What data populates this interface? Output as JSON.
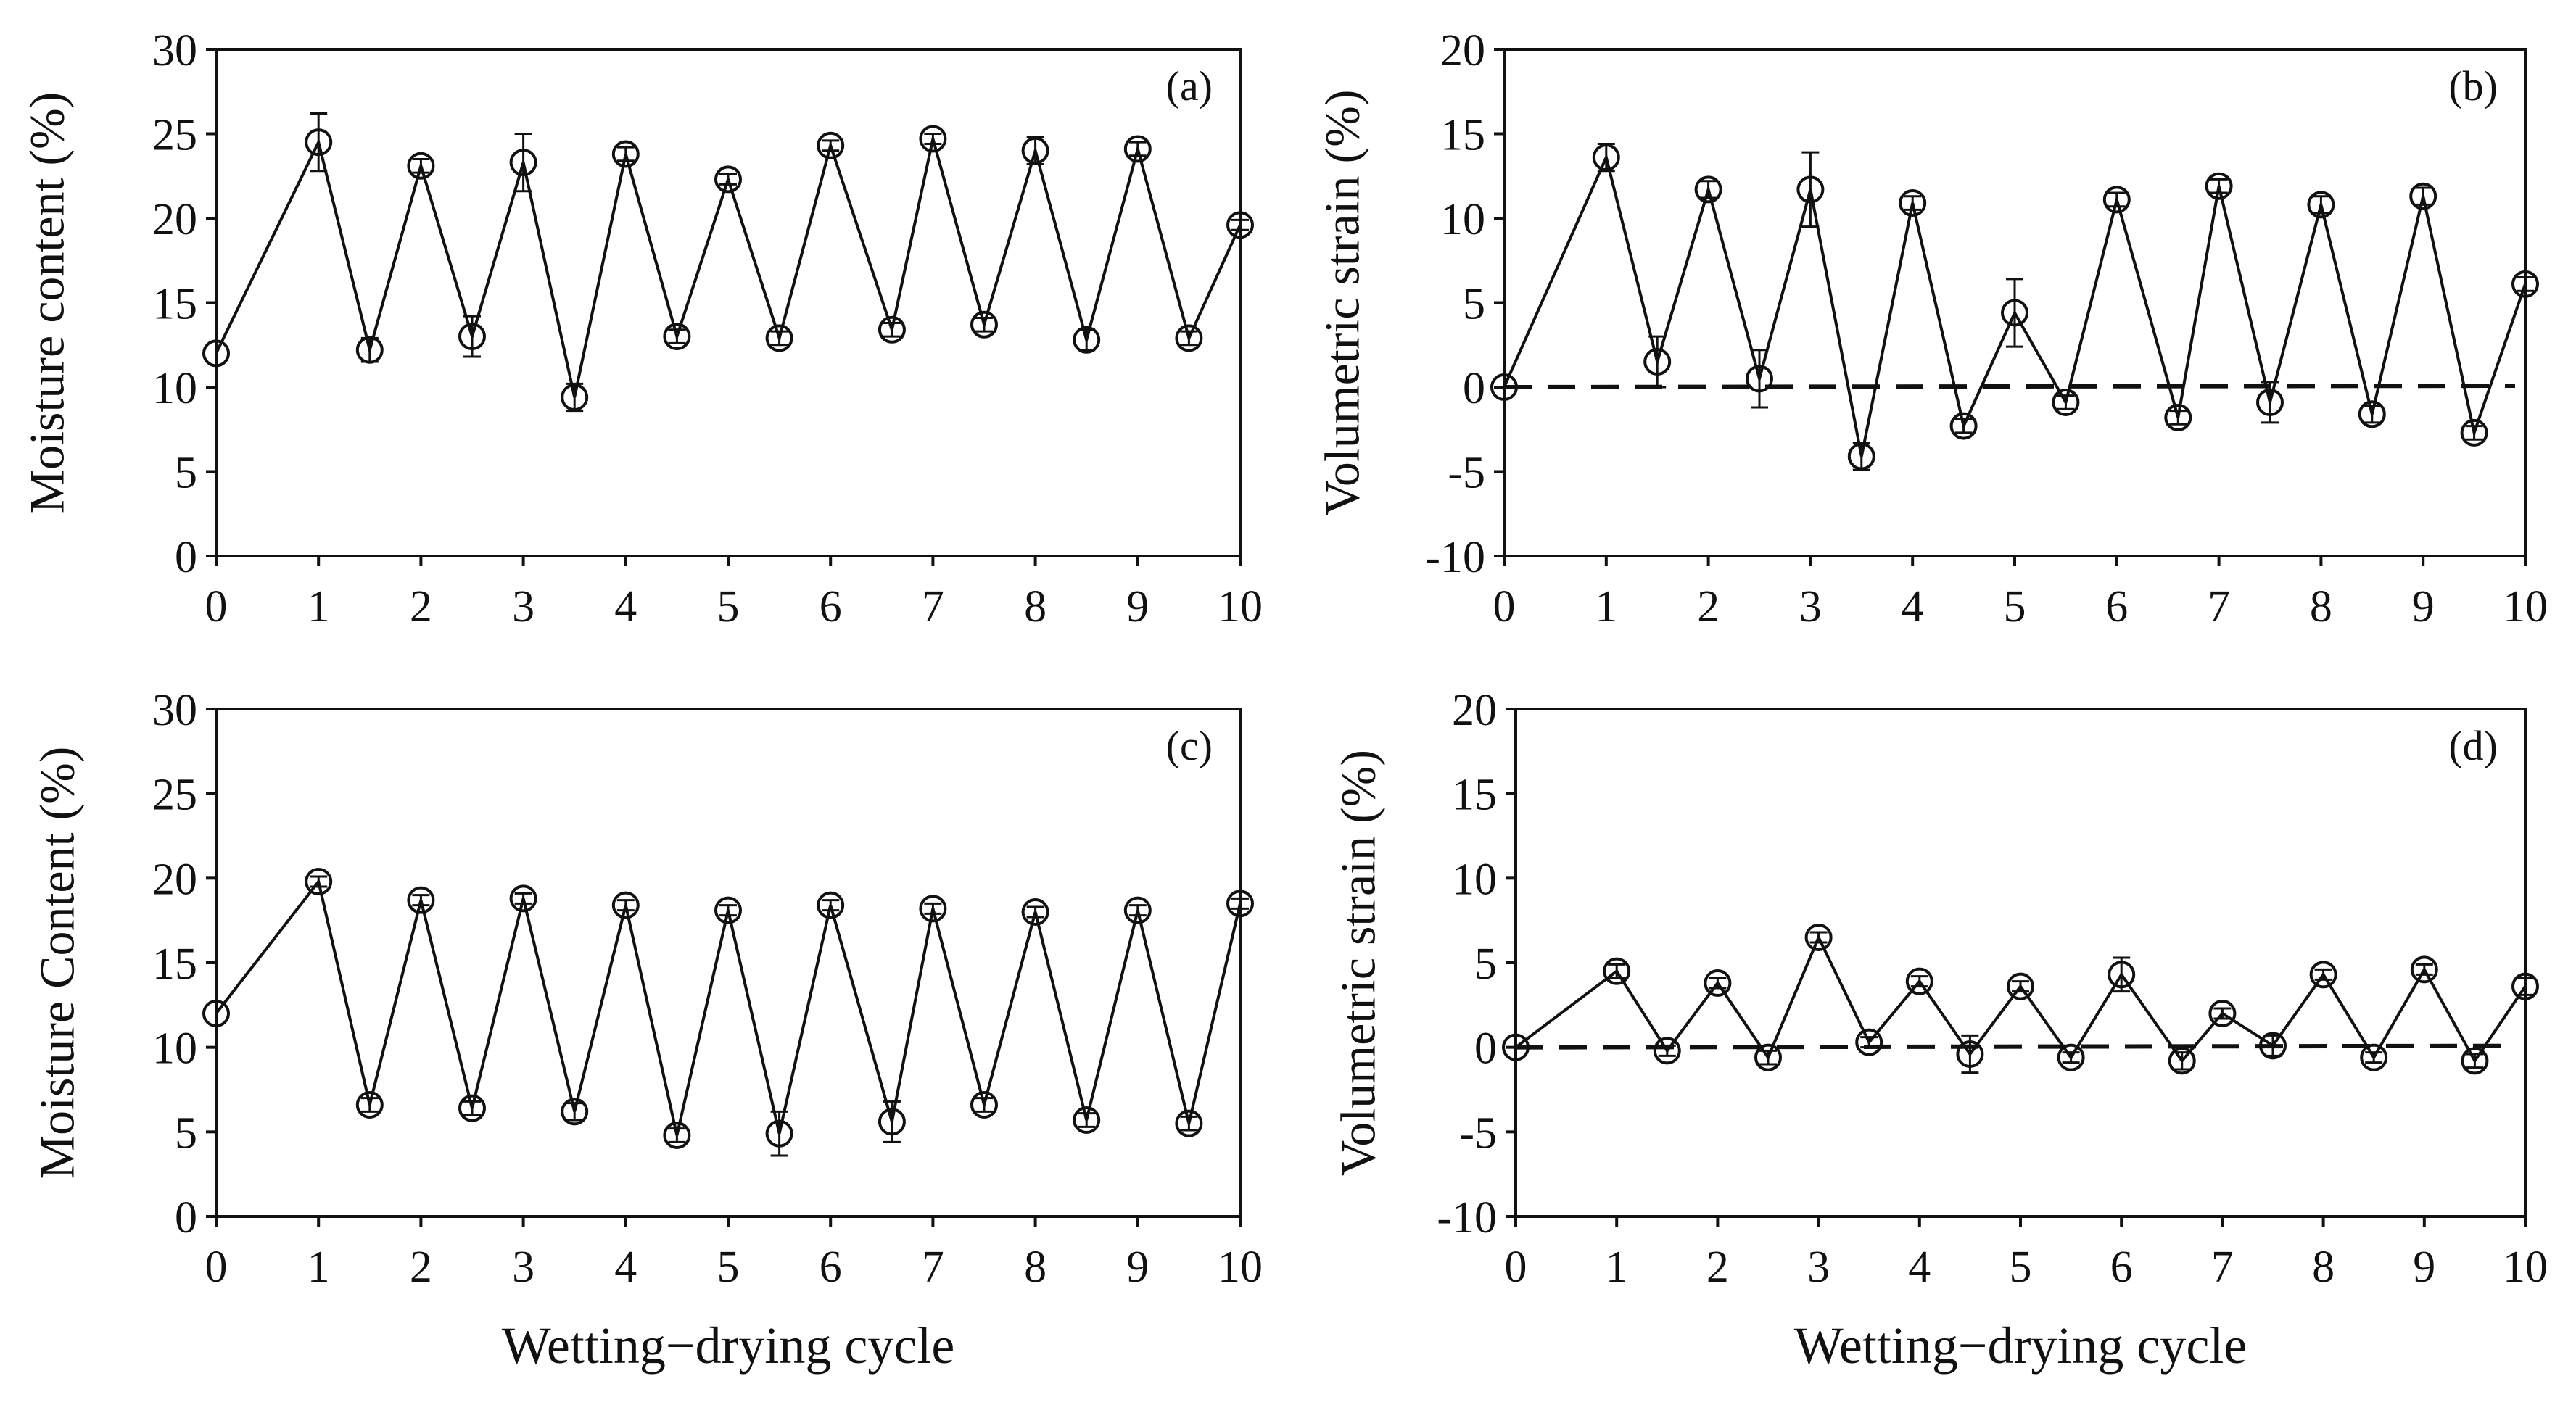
{
  "figure": {
    "xlabel": "Wetting−drying cycle"
  },
  "chart_data": [
    {
      "id": "a",
      "type": "line",
      "panel_label": "(a)",
      "ylabel": "Moisture content (%)",
      "xlabel": "",
      "xlim": [
        0,
        10
      ],
      "ylim": [
        0,
        30
      ],
      "xticks": [
        0,
        1,
        2,
        3,
        4,
        5,
        6,
        7,
        8,
        9,
        10
      ],
      "yticks": [
        0,
        5,
        10,
        15,
        20,
        25,
        30
      ],
      "series": [
        {
          "name": "Moisture content",
          "x": [
            0,
            1,
            1.5,
            2,
            2.5,
            3,
            3.5,
            4,
            4.5,
            5,
            5.5,
            6,
            6.6,
            7,
            7.5,
            8,
            8.5,
            9,
            9.5,
            10
          ],
          "y": [
            12.0,
            24.5,
            12.2,
            23.1,
            13.0,
            23.3,
            9.4,
            23.8,
            13.0,
            22.3,
            12.9,
            24.3,
            13.4,
            24.7,
            13.7,
            24.0,
            12.8,
            24.1,
            12.9,
            19.6
          ],
          "err": [
            0,
            1.7,
            0.7,
            0.4,
            1.2,
            1.7,
            0.8,
            0.4,
            0.4,
            0.3,
            0.4,
            0.3,
            0.4,
            0.3,
            0.4,
            0.8,
            0.6,
            0.4,
            0.4,
            0.3
          ]
        }
      ]
    },
    {
      "id": "b",
      "type": "line",
      "panel_label": "(b)",
      "ylabel": "Volumetric strain (%)",
      "xlabel": "",
      "xlim": [
        0,
        10
      ],
      "ylim": [
        -10,
        20
      ],
      "xticks": [
        0,
        1,
        2,
        3,
        4,
        5,
        6,
        7,
        8,
        9,
        10
      ],
      "yticks": [
        -10,
        -5,
        0,
        5,
        10,
        15,
        20
      ],
      "reference_line": 0,
      "series": [
        {
          "name": "Volumetric strain",
          "x": [
            0,
            1,
            1.5,
            2,
            2.5,
            3,
            3.5,
            4,
            4.5,
            5,
            5.5,
            6,
            6.6,
            7,
            7.5,
            8,
            8.5,
            9,
            9.5,
            10
          ],
          "y": [
            0.0,
            13.6,
            1.5,
            11.7,
            0.5,
            11.7,
            -4.1,
            10.9,
            -2.3,
            4.4,
            -0.9,
            11.1,
            -1.8,
            11.9,
            -0.9,
            10.8,
            -1.6,
            11.3,
            -2.7,
            6.1
          ],
          "err": [
            0,
            0.8,
            1.5,
            0.5,
            1.7,
            2.2,
            0.8,
            0.4,
            0.4,
            2.0,
            0.4,
            0.4,
            0.4,
            0.4,
            1.2,
            0.5,
            0.5,
            0.5,
            0.4,
            0.4
          ]
        }
      ]
    },
    {
      "id": "c",
      "type": "line",
      "panel_label": "(c)",
      "ylabel": "Moisture Content (%)",
      "xlabel": "Wetting−drying cycle",
      "xlim": [
        0,
        10
      ],
      "ylim": [
        0,
        30
      ],
      "xticks": [
        0,
        1,
        2,
        3,
        4,
        5,
        6,
        7,
        8,
        9,
        10
      ],
      "yticks": [
        0,
        5,
        10,
        15,
        20,
        25,
        30
      ],
      "series": [
        {
          "name": "Moisture Content",
          "x": [
            0,
            1,
            1.5,
            2,
            2.5,
            3,
            3.5,
            4,
            4.5,
            5,
            5.5,
            6,
            6.6,
            7,
            7.5,
            8,
            8.5,
            9,
            9.5,
            10
          ],
          "y": [
            12.0,
            19.8,
            6.6,
            18.7,
            6.4,
            18.8,
            6.2,
            18.4,
            4.8,
            18.1,
            4.9,
            18.4,
            5.6,
            18.2,
            6.6,
            18.0,
            5.7,
            18.1,
            5.5,
            18.5
          ],
          "err": [
            0,
            0.3,
            0.4,
            0.3,
            0.4,
            0.3,
            0.5,
            0.3,
            0.4,
            0.3,
            1.3,
            0.3,
            1.2,
            0.3,
            0.4,
            0.3,
            0.4,
            0.3,
            0.4,
            0.3
          ]
        }
      ]
    },
    {
      "id": "d",
      "type": "line",
      "panel_label": "(d)",
      "ylabel": "Volumetric strain (%)",
      "xlabel": "Wetting−drying cycle",
      "xlim": [
        0,
        10
      ],
      "ylim": [
        -10,
        20
      ],
      "xticks": [
        0,
        1,
        2,
        3,
        4,
        5,
        6,
        7,
        8,
        9,
        10
      ],
      "yticks": [
        -10,
        -5,
        0,
        5,
        10,
        15,
        20
      ],
      "reference_line": 0,
      "series": [
        {
          "name": "Volumetric strain",
          "x": [
            0,
            1,
            1.5,
            2,
            2.5,
            3,
            3.5,
            4,
            4.5,
            5,
            5.5,
            6,
            6.6,
            7,
            7.5,
            8,
            8.5,
            9,
            9.5,
            10
          ],
          "y": [
            0.0,
            4.5,
            -0.2,
            3.8,
            -0.6,
            6.5,
            0.3,
            3.9,
            -0.4,
            3.6,
            -0.6,
            4.3,
            -0.8,
            2.0,
            0.1,
            4.3,
            -0.6,
            4.6,
            -0.8,
            3.6
          ],
          "err": [
            0,
            0.4,
            0.3,
            0.3,
            0.4,
            0.3,
            0.3,
            0.3,
            1.1,
            0.3,
            0.3,
            1.0,
            0.5,
            0.3,
            0.6,
            0.3,
            0.3,
            0.3,
            0.4,
            0.5
          ]
        }
      ]
    }
  ]
}
